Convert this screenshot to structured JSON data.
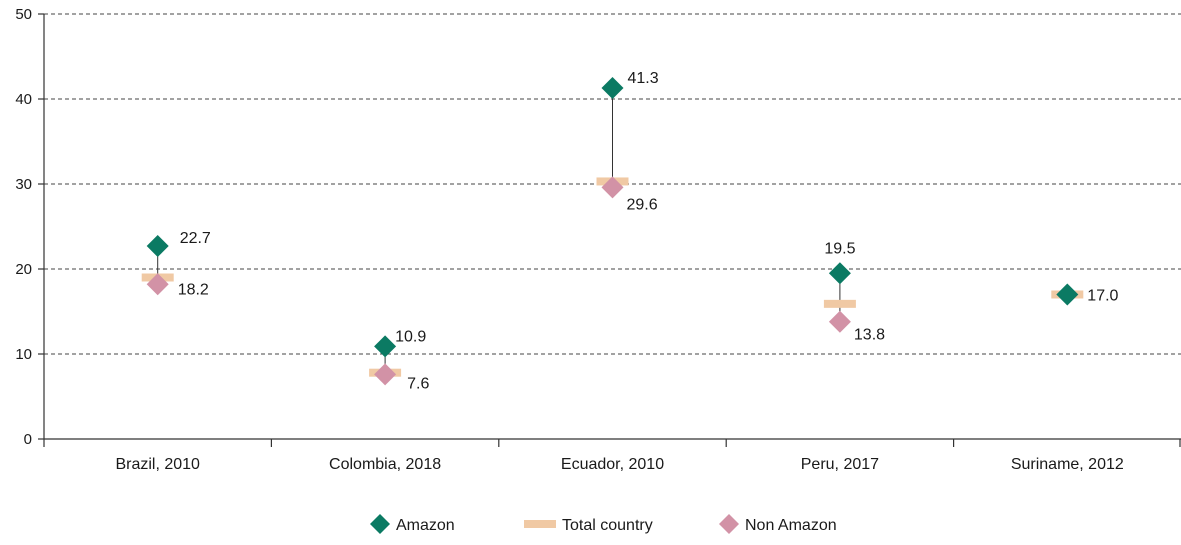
{
  "chart_data": {
    "type": "scatter",
    "title": "",
    "xlabel": "",
    "ylabel": "",
    "ylim": [
      0,
      50
    ],
    "yticks": [
      0,
      10,
      20,
      30,
      40,
      50
    ],
    "grid": true,
    "legend_position": "bottom-center",
    "categories": [
      "Brazil, 2010",
      "Colombia, 2018",
      "Ecuador, 2010",
      "Peru, 2017",
      "Suriname, 2012"
    ],
    "series": [
      {
        "name": "Amazon",
        "marker": "diamond",
        "color": "#0b7a63",
        "values": [
          22.7,
          10.9,
          41.3,
          19.5,
          17.0
        ]
      },
      {
        "name": "Total country",
        "marker": "dash",
        "color": "#f0c9a4",
        "values": [
          19.0,
          7.8,
          30.3,
          15.9,
          17.0
        ]
      },
      {
        "name": "Non Amazon",
        "marker": "diamond",
        "color": "#d292a6",
        "values": [
          18.2,
          7.6,
          29.6,
          13.8,
          null
        ]
      }
    ],
    "data_labels": {
      "Amazon": [
        "22.7",
        "10.9",
        "41.3",
        "19.5",
        "17.0"
      ],
      "Non Amazon": [
        "18.2",
        "7.6",
        "29.6",
        "13.8",
        null
      ]
    }
  }
}
